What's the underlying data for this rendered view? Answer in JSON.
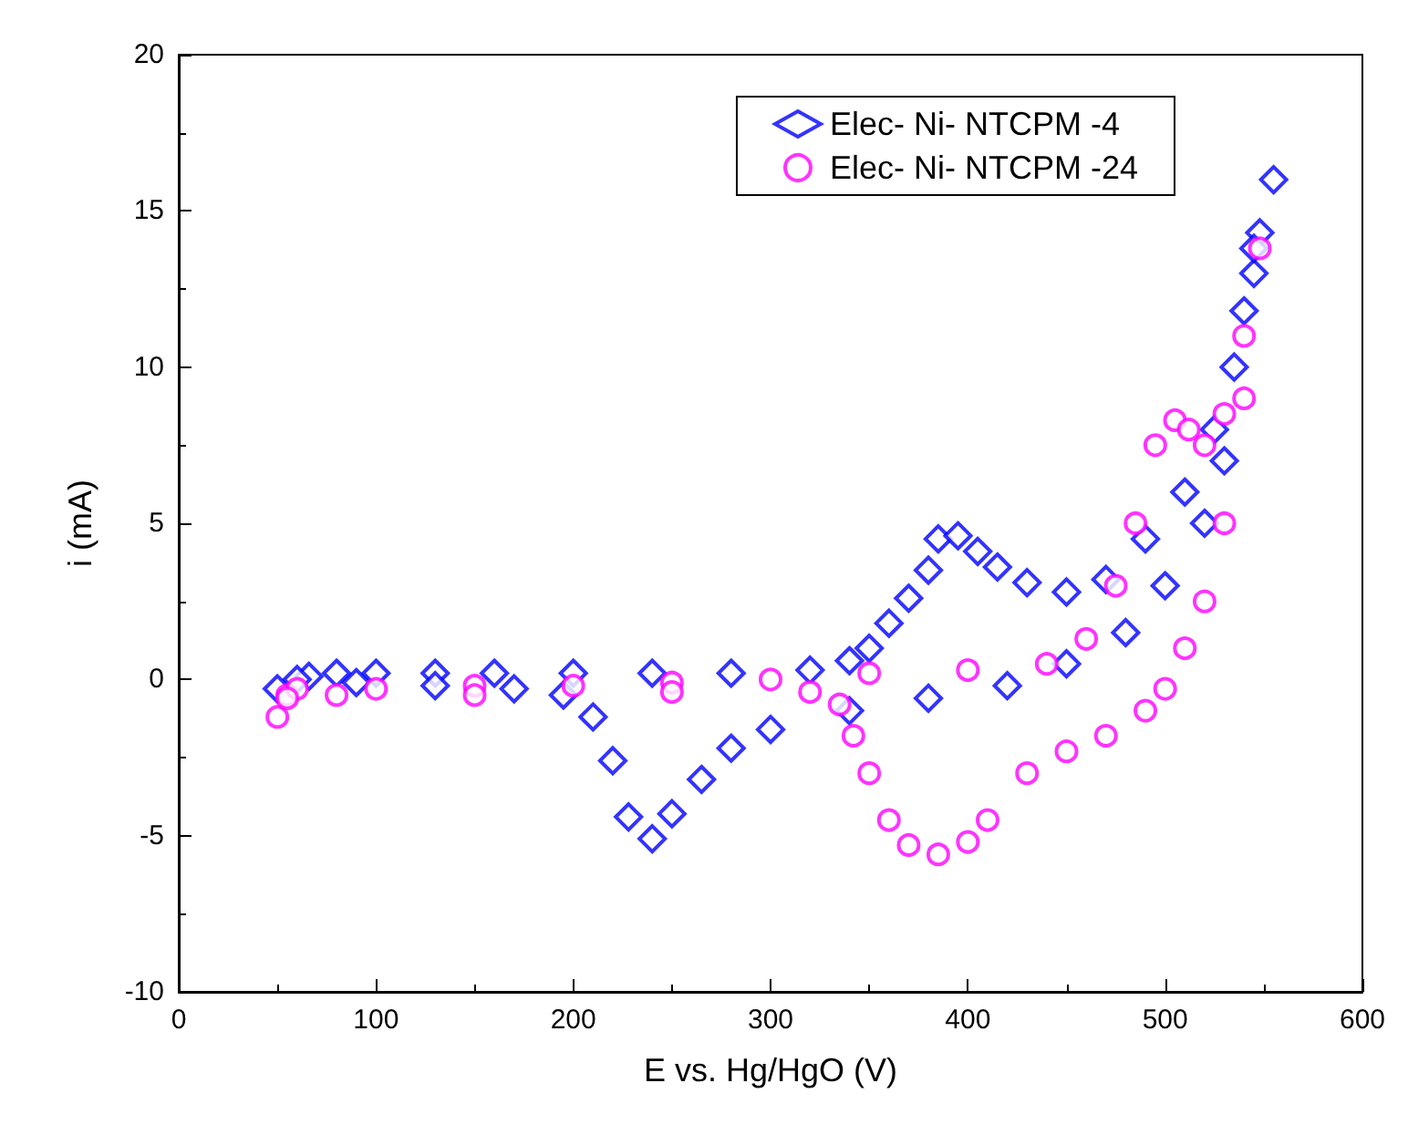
{
  "chart_data": {
    "type": "scatter",
    "xlabel": "E vs. Hg/HgO (V)",
    "ylabel": "i (mA)",
    "xlim": [
      0,
      600
    ],
    "xticks": [
      0,
      100,
      200,
      300,
      400,
      500,
      600
    ],
    "ylim": [
      -10,
      20
    ],
    "yticks": [
      -10,
      -5,
      0,
      5,
      10,
      15,
      20
    ],
    "grid": false,
    "legend": "top right",
    "series": [
      {
        "name": "Elec- Ni- NTCPM -4",
        "color": "#0000ff",
        "marker": "diamond",
        "x": [
          50,
          66,
          80,
          100,
          130,
          160,
          200,
          240,
          280,
          320,
          340,
          350,
          360,
          370,
          380,
          385,
          395,
          405,
          415,
          430,
          450,
          470,
          490,
          510,
          525,
          535,
          545,
          548,
          555,
          545,
          540,
          530,
          520,
          500,
          480,
          450,
          420,
          380,
          340,
          300,
          280,
          265,
          250,
          240,
          228,
          220,
          210,
          195,
          170,
          130,
          90,
          60
        ],
        "values": [
          -0.3,
          0.1,
          0.2,
          0.2,
          0.2,
          0.2,
          0.2,
          0.2,
          0.2,
          0.3,
          0.6,
          1,
          1.8,
          2.6,
          3.5,
          4.5,
          4.6,
          4.1,
          3.6,
          3.1,
          2.8,
          3.2,
          4.5,
          6,
          8,
          10,
          13,
          14.3,
          16,
          13.8,
          11.8,
          7,
          5,
          3,
          1.5,
          0.5,
          -0.2,
          -0.6,
          -1,
          -1.6,
          -2.2,
          -3.2,
          -4.3,
          -5.1,
          -4.4,
          -2.6,
          -1.2,
          -0.5,
          -0.3,
          -0.2,
          -0.1,
          0
        ]
      },
      {
        "name": "Elec- Ni- NTCPM -24",
        "color": "#ff00ff",
        "marker": "circle",
        "x": [
          50,
          55,
          60,
          100,
          150,
          200,
          250,
          300,
          350,
          400,
          440,
          460,
          475,
          485,
          495,
          505,
          512,
          520,
          530,
          540,
          548,
          540,
          530,
          520,
          510,
          500,
          490,
          470,
          450,
          430,
          410,
          400,
          385,
          370,
          360,
          350,
          342,
          335,
          320,
          250,
          150,
          80,
          55
        ],
        "values": [
          -1.2,
          -0.5,
          -0.3,
          -0.3,
          -0.2,
          -0.2,
          -0.1,
          0,
          0.2,
          0.3,
          0.5,
          1.3,
          3,
          5,
          7.5,
          8.3,
          8,
          7.5,
          8.5,
          11,
          13.8,
          9,
          5,
          2.5,
          1,
          -0.3,
          -1,
          -1.8,
          -2.3,
          -3,
          -4.5,
          -5.2,
          -5.6,
          -5.3,
          -4.5,
          -3,
          -1.8,
          -0.8,
          -0.4,
          -0.4,
          -0.5,
          -0.5,
          -0.6
        ]
      }
    ]
  }
}
